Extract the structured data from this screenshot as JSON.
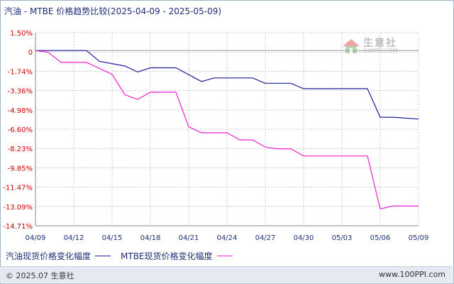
{
  "title": "汽油 - MTBE 价格趋势比较(2025-04-09 - 2025-05-09)",
  "footer": {
    "copyright": "© 2025.07 生意社",
    "url": "www.100PPI.com"
  },
  "watermark": {
    "name": "生意社",
    "url": "100PPI.COM"
  },
  "colors": {
    "series1": "#1c1c9c",
    "series2": "#ee1fd2",
    "axis_labels": "#cc0000",
    "grid": "#c8c8c8"
  },
  "chart_data": {
    "type": "line",
    "title": "汽油 - MTBE 价格趋势比较(2025-04-09 - 2025-05-09)",
    "xlabel": "",
    "ylabel": "",
    "x_ticks": [
      "04/09",
      "04/12",
      "04/15",
      "04/18",
      "04/21",
      "04/24",
      "04/27",
      "04/30",
      "05/03",
      "05/06",
      "05/09"
    ],
    "y_ticks": [
      "1.50%",
      "0",
      "-1.74%",
      "-3.36%",
      "-4.98%",
      "-6.60%",
      "-8.23%",
      "-9.85%",
      "-11.47%",
      "-13.09%",
      "-14.71%"
    ],
    "ylim": [
      -14.71,
      1.5
    ],
    "xlim": [
      "2025-04-09",
      "2025-05-09"
    ],
    "grid": true,
    "legend_position": "bottom-left",
    "series": [
      {
        "name": "汽油现货价格变化幅度",
        "points": [
          {
            "x": "2025-04-09",
            "y": 0
          },
          {
            "x": "2025-04-13",
            "y": 0
          },
          {
            "x": "2025-04-14",
            "y": -0.9
          },
          {
            "x": "2025-04-16",
            "y": -1.3
          },
          {
            "x": "2025-04-17",
            "y": -1.8
          },
          {
            "x": "2025-04-18",
            "y": -1.45
          },
          {
            "x": "2025-04-20",
            "y": -1.45
          },
          {
            "x": "2025-04-22",
            "y": -2.6
          },
          {
            "x": "2025-04-23",
            "y": -2.3
          },
          {
            "x": "2025-04-26",
            "y": -2.3
          },
          {
            "x": "2025-04-27",
            "y": -2.75
          },
          {
            "x": "2025-04-29",
            "y": -2.75
          },
          {
            "x": "2025-04-30",
            "y": -3.2
          },
          {
            "x": "2025-05-05",
            "y": -3.2
          },
          {
            "x": "2025-05-06",
            "y": -5.6
          },
          {
            "x": "2025-05-07",
            "y": -5.6
          },
          {
            "x": "2025-05-09",
            "y": -5.75
          }
        ]
      },
      {
        "name": "MTBE现货价格变化幅度",
        "points": [
          {
            "x": "2025-04-09",
            "y": 0
          },
          {
            "x": "2025-04-10",
            "y": -0.15
          },
          {
            "x": "2025-04-11",
            "y": -1.0
          },
          {
            "x": "2025-04-13",
            "y": -1.0
          },
          {
            "x": "2025-04-15",
            "y": -2.0
          },
          {
            "x": "2025-04-16",
            "y": -3.7
          },
          {
            "x": "2025-04-17",
            "y": -4.1
          },
          {
            "x": "2025-04-18",
            "y": -3.5
          },
          {
            "x": "2025-04-20",
            "y": -3.5
          },
          {
            "x": "2025-04-21",
            "y": -6.4
          },
          {
            "x": "2025-04-22",
            "y": -6.9
          },
          {
            "x": "2025-04-24",
            "y": -6.9
          },
          {
            "x": "2025-04-25",
            "y": -7.5
          },
          {
            "x": "2025-04-26",
            "y": -7.5
          },
          {
            "x": "2025-04-27",
            "y": -8.1
          },
          {
            "x": "2025-04-28",
            "y": -8.25
          },
          {
            "x": "2025-04-29",
            "y": -8.25
          },
          {
            "x": "2025-04-30",
            "y": -8.85
          },
          {
            "x": "2025-05-05",
            "y": -8.85
          },
          {
            "x": "2025-05-06",
            "y": -13.3
          },
          {
            "x": "2025-05-07",
            "y": -13.05
          },
          {
            "x": "2025-05-09",
            "y": -13.05
          }
        ]
      }
    ]
  }
}
